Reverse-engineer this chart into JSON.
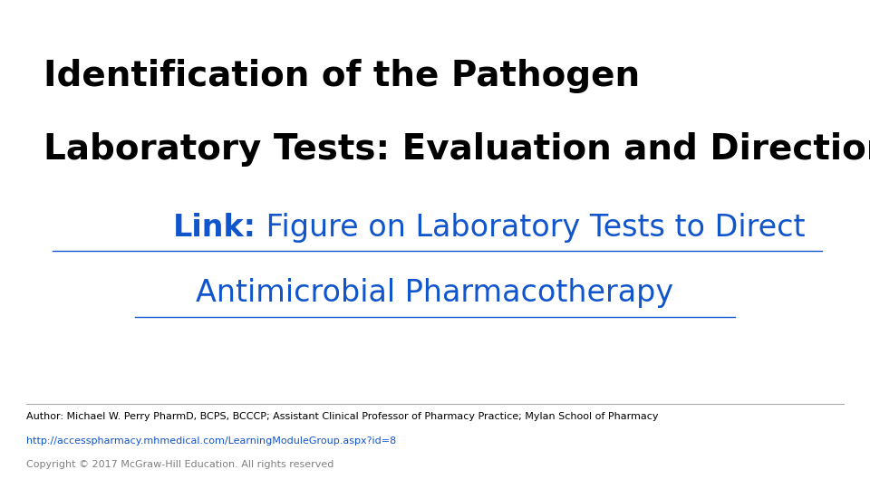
{
  "title_line1": "Identification of the Pathogen",
  "title_line2": "Laboratory Tests: Evaluation and Direction",
  "link_label": "Link:",
  "link_text_line1": " Figure on Laboratory Tests to Direct",
  "link_text_line2": "Antimicrobial Pharmacotherapy",
  "footer_author": "Author: Michael W. Perry PharmD, BCPS, BCCCP; Assistant Clinical Professor of Pharmacy Practice; Mylan School of Pharmacy",
  "footer_url": "http://accesspharmacy.mhmedical.com/LearningModuleGroup.aspx?id=8",
  "footer_copyright": "Copyright © 2017 McGraw-Hill Education. All rights reserved",
  "bg_color": "#ffffff",
  "title_color": "#000000",
  "link_color": "#1155cc",
  "footer_color": "#000000",
  "footer_url_color": "#1155cc",
  "footer_copyright_color": "#808080",
  "title_fontsize": 28,
  "link_fontsize": 24,
  "footer_fontsize": 8
}
